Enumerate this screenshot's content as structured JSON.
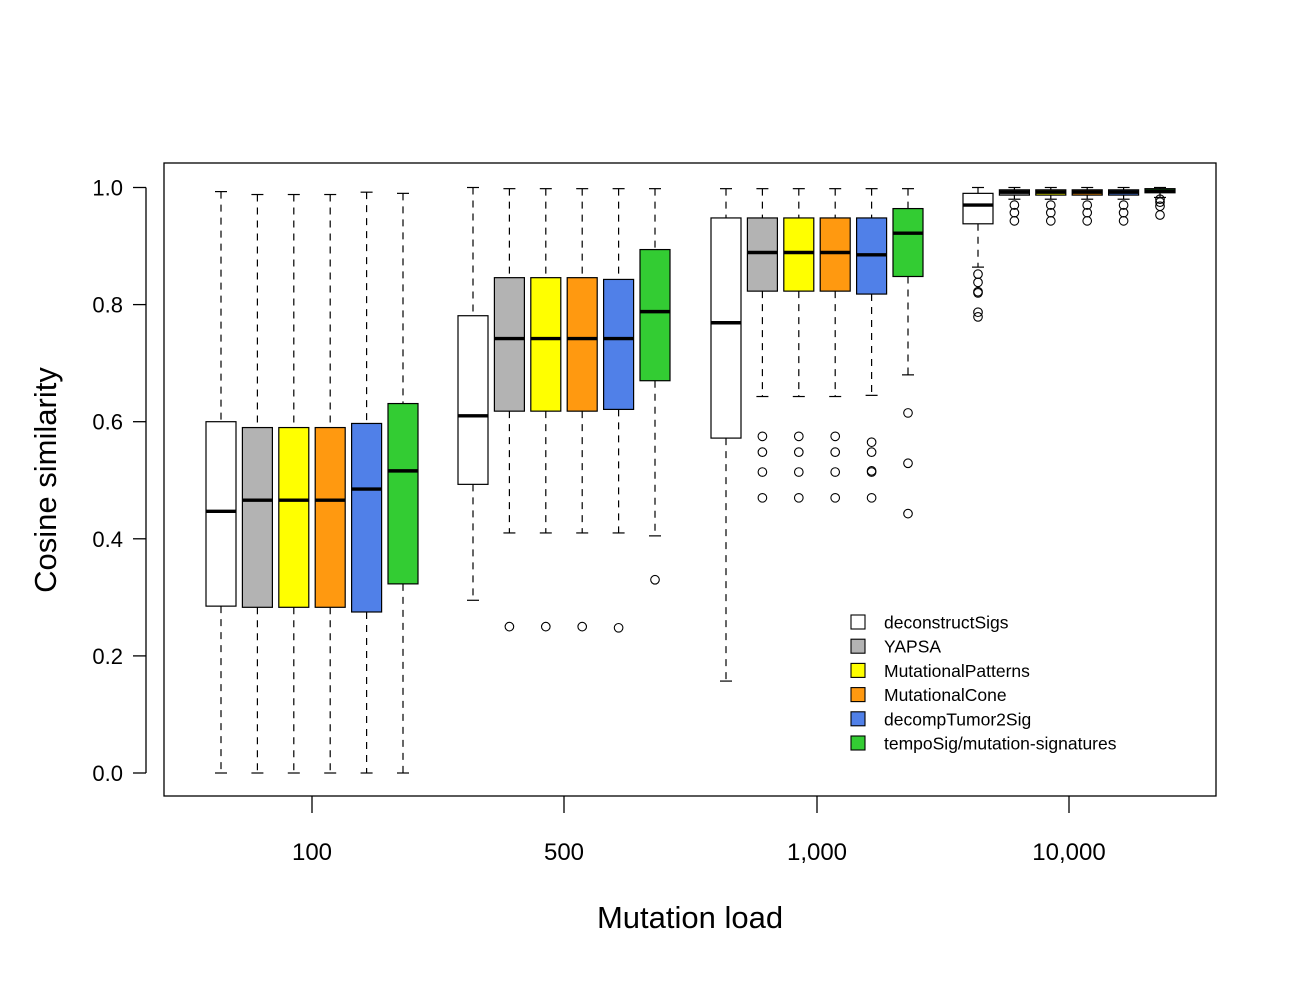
{
  "chart_data": {
    "type": "boxplot",
    "xlabel": "Mutation load",
    "ylabel": "Cosine similarity",
    "ylim": [
      0,
      1.04
    ],
    "yticks": [
      "0.0",
      "0.2",
      "0.4",
      "0.6",
      "0.8",
      "1.0"
    ],
    "categories": [
      "100",
      "500",
      "1,000",
      "10,000"
    ],
    "legend_position": "bottom-right",
    "series": [
      {
        "name": "deconstructSigs",
        "color": "#ffffff",
        "boxes": [
          {
            "whisker_low": 0.0,
            "q1": 0.285,
            "median": 0.447,
            "q3": 0.6,
            "whisker_high": 0.993,
            "outliers": []
          },
          {
            "whisker_low": 0.295,
            "q1": 0.493,
            "median": 0.61,
            "q3": 0.781,
            "whisker_high": 1.0,
            "outliers": []
          },
          {
            "whisker_low": 0.157,
            "q1": 0.572,
            "median": 0.769,
            "q3": 0.948,
            "whisker_high": 0.998,
            "outliers": []
          },
          {
            "whisker_low": 0.864,
            "q1": 0.938,
            "median": 0.97,
            "q3": 0.99,
            "whisker_high": 1.0,
            "outliers": [
              0.852,
              0.838,
              0.822,
              0.82,
              0.787,
              0.779
            ]
          }
        ]
      },
      {
        "name": "YAPSA",
        "color": "#b3b3b3",
        "boxes": [
          {
            "whisker_low": 0.0,
            "q1": 0.283,
            "median": 0.466,
            "q3": 0.59,
            "whisker_high": 0.988,
            "outliers": []
          },
          {
            "whisker_low": 0.41,
            "q1": 0.618,
            "median": 0.742,
            "q3": 0.846,
            "whisker_high": 0.998,
            "outliers": [
              0.25
            ]
          },
          {
            "whisker_low": 0.643,
            "q1": 0.823,
            "median": 0.889,
            "q3": 0.948,
            "whisker_high": 0.998,
            "outliers": [
              0.575,
              0.548,
              0.514,
              0.47
            ]
          },
          {
            "whisker_low": 0.98,
            "q1": 0.987,
            "median": 0.992,
            "q3": 0.996,
            "whisker_high": 1.0,
            "outliers": [
              0.97,
              0.957,
              0.943
            ]
          }
        ]
      },
      {
        "name": "MutationalPatterns",
        "color": "#ffff00",
        "boxes": [
          {
            "whisker_low": 0.0,
            "q1": 0.283,
            "median": 0.466,
            "q3": 0.59,
            "whisker_high": 0.988,
            "outliers": []
          },
          {
            "whisker_low": 0.41,
            "q1": 0.618,
            "median": 0.742,
            "q3": 0.846,
            "whisker_high": 0.998,
            "outliers": [
              0.25
            ]
          },
          {
            "whisker_low": 0.643,
            "q1": 0.823,
            "median": 0.889,
            "q3": 0.948,
            "whisker_high": 0.998,
            "outliers": [
              0.575,
              0.548,
              0.514,
              0.47
            ]
          },
          {
            "whisker_low": 0.98,
            "q1": 0.987,
            "median": 0.992,
            "q3": 0.996,
            "whisker_high": 1.0,
            "outliers": [
              0.97,
              0.957,
              0.943
            ]
          }
        ]
      },
      {
        "name": "MutationalCone",
        "color": "#ff9910",
        "boxes": [
          {
            "whisker_low": 0.0,
            "q1": 0.283,
            "median": 0.466,
            "q3": 0.59,
            "whisker_high": 0.988,
            "outliers": []
          },
          {
            "whisker_low": 0.41,
            "q1": 0.618,
            "median": 0.742,
            "q3": 0.846,
            "whisker_high": 0.998,
            "outliers": [
              0.25
            ]
          },
          {
            "whisker_low": 0.643,
            "q1": 0.823,
            "median": 0.889,
            "q3": 0.948,
            "whisker_high": 0.998,
            "outliers": [
              0.575,
              0.548,
              0.514,
              0.47
            ]
          },
          {
            "whisker_low": 0.98,
            "q1": 0.987,
            "median": 0.992,
            "q3": 0.996,
            "whisker_high": 1.0,
            "outliers": [
              0.97,
              0.957,
              0.943
            ]
          }
        ]
      },
      {
        "name": "decompTumor2Sig",
        "color": "#5080e8",
        "boxes": [
          {
            "whisker_low": 0.0,
            "q1": 0.275,
            "median": 0.485,
            "q3": 0.597,
            "whisker_high": 0.992,
            "outliers": []
          },
          {
            "whisker_low": 0.41,
            "q1": 0.621,
            "median": 0.742,
            "q3": 0.843,
            "whisker_high": 0.998,
            "outliers": [
              0.248
            ]
          },
          {
            "whisker_low": 0.645,
            "q1": 0.818,
            "median": 0.885,
            "q3": 0.948,
            "whisker_high": 0.998,
            "outliers": [
              0.565,
              0.548,
              0.516,
              0.514,
              0.47
            ]
          },
          {
            "whisker_low": 0.98,
            "q1": 0.987,
            "median": 0.992,
            "q3": 0.996,
            "whisker_high": 1.0,
            "outliers": [
              0.97,
              0.957,
              0.943
            ]
          }
        ]
      },
      {
        "name": "tempoSig/mutation-signatures",
        "color": "#33cc33",
        "boxes": [
          {
            "whisker_low": 0.0,
            "q1": 0.323,
            "median": 0.516,
            "q3": 0.631,
            "whisker_high": 0.99,
            "outliers": []
          },
          {
            "whisker_low": 0.405,
            "q1": 0.67,
            "median": 0.788,
            "q3": 0.894,
            "whisker_high": 0.998,
            "outliers": [
              0.33
            ]
          },
          {
            "whisker_low": 0.68,
            "q1": 0.848,
            "median": 0.922,
            "q3": 0.964,
            "whisker_high": 0.998,
            "outliers": [
              0.615,
              0.529,
              0.443
            ]
          },
          {
            "whisker_low": 0.983,
            "q1": 0.991,
            "median": 0.994,
            "q3": 0.998,
            "whisker_high": 1.0,
            "outliers": [
              0.98,
              0.975,
              0.968,
              0.953
            ]
          }
        ]
      }
    ]
  }
}
